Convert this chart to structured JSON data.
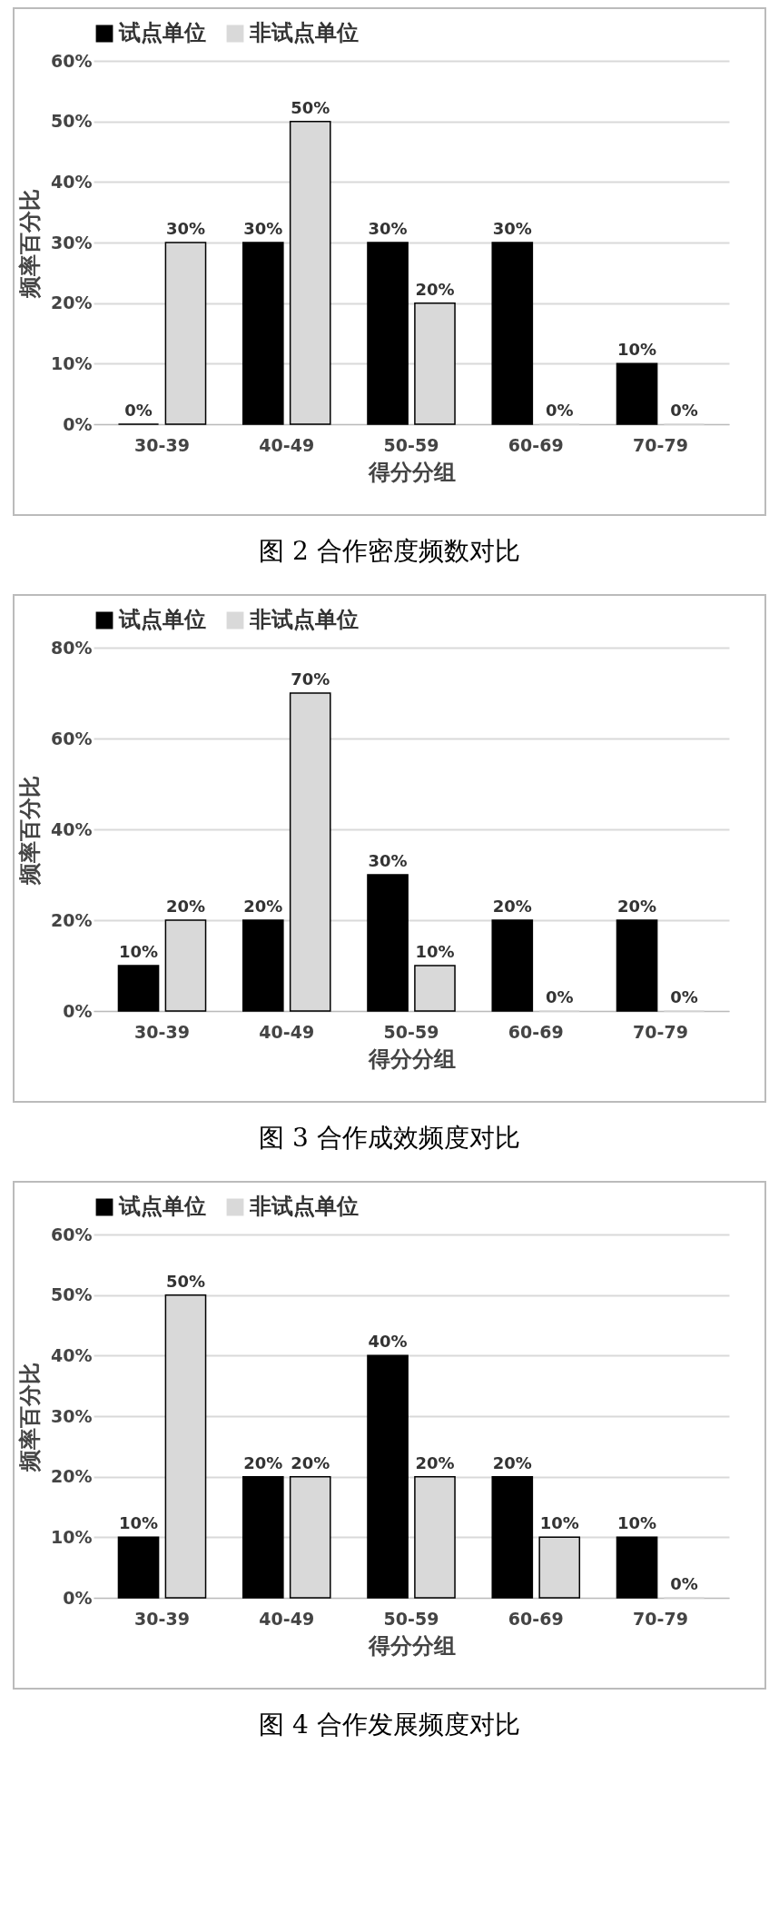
{
  "chart_data": [
    {
      "type": "bar",
      "xlabel": "得分分组",
      "ylabel": "频率百分比",
      "categories": [
        "30-39",
        "40-49",
        "50-59",
        "60-69",
        "70-79"
      ],
      "series": [
        {
          "name": "试点单位",
          "color": "#000000",
          "values": [
            0,
            30,
            30,
            30,
            10
          ],
          "value_labels": [
            "0%",
            "30%",
            "30%",
            "30%",
            "10%"
          ]
        },
        {
          "name": "非试点单位",
          "color": "#d9d9d9",
          "values": [
            30,
            50,
            20,
            0,
            0
          ],
          "value_labels": [
            "30%",
            "50%",
            "20%",
            "0%",
            "0%"
          ]
        }
      ],
      "ylim": [
        0,
        60
      ],
      "yticks": [
        {
          "value": 0,
          "label": "0%"
        },
        {
          "value": 10,
          "label": "10%"
        },
        {
          "value": 20,
          "label": "20%"
        },
        {
          "value": 30,
          "label": "30%"
        },
        {
          "value": 40,
          "label": "40%"
        },
        {
          "value": 50,
          "label": "50%"
        },
        {
          "value": 60,
          "label": "60%"
        }
      ],
      "grid": "y",
      "legend": "top",
      "annotations": [
        "图 2 合作密度频数对比"
      ]
    },
    {
      "type": "bar",
      "xlabel": "得分分组",
      "ylabel": "频率百分比",
      "categories": [
        "30-39",
        "40-49",
        "50-59",
        "60-69",
        "70-79"
      ],
      "series": [
        {
          "name": "试点单位",
          "color": "#000000",
          "values": [
            10,
            20,
            30,
            20,
            20
          ],
          "value_labels": [
            "10%",
            "20%",
            "30%",
            "20%",
            "20%"
          ]
        },
        {
          "name": "非试点单位",
          "color": "#d9d9d9",
          "values": [
            20,
            70,
            10,
            0,
            0
          ],
          "value_labels": [
            "20%",
            "70%",
            "10%",
            "0%",
            "0%"
          ]
        }
      ],
      "ylim": [
        0,
        80
      ],
      "yticks": [
        {
          "value": 0,
          "label": "0%"
        },
        {
          "value": 20,
          "label": "20%"
        },
        {
          "value": 40,
          "label": "40%"
        },
        {
          "value": 60,
          "label": "60%"
        },
        {
          "value": 80,
          "label": "80%"
        }
      ],
      "grid": "y",
      "legend": "top",
      "annotations": [
        "图 3 合作成效频度对比"
      ]
    },
    {
      "type": "bar",
      "xlabel": "得分分组",
      "ylabel": "频率百分比",
      "categories": [
        "30-39",
        "40-49",
        "50-59",
        "60-69",
        "70-79"
      ],
      "series": [
        {
          "name": "试点单位",
          "color": "#000000",
          "values": [
            10,
            20,
            40,
            20,
            10
          ],
          "value_labels": [
            "10%",
            "20%",
            "40%",
            "20%",
            "10%"
          ]
        },
        {
          "name": "非试点单位",
          "color": "#d9d9d9",
          "values": [
            50,
            20,
            20,
            10,
            0
          ],
          "value_labels": [
            "50%",
            "20%",
            "20%",
            "10%",
            "0%"
          ]
        }
      ],
      "ylim": [
        0,
        60
      ],
      "yticks": [
        {
          "value": 0,
          "label": "0%"
        },
        {
          "value": 10,
          "label": "10%"
        },
        {
          "value": 20,
          "label": "20%"
        },
        {
          "value": 30,
          "label": "30%"
        },
        {
          "value": 40,
          "label": "40%"
        },
        {
          "value": 50,
          "label": "50%"
        },
        {
          "value": 60,
          "label": "60%"
        }
      ],
      "grid": "y",
      "legend": "top",
      "annotations": [
        "图 4 合作发展频度对比"
      ]
    }
  ]
}
